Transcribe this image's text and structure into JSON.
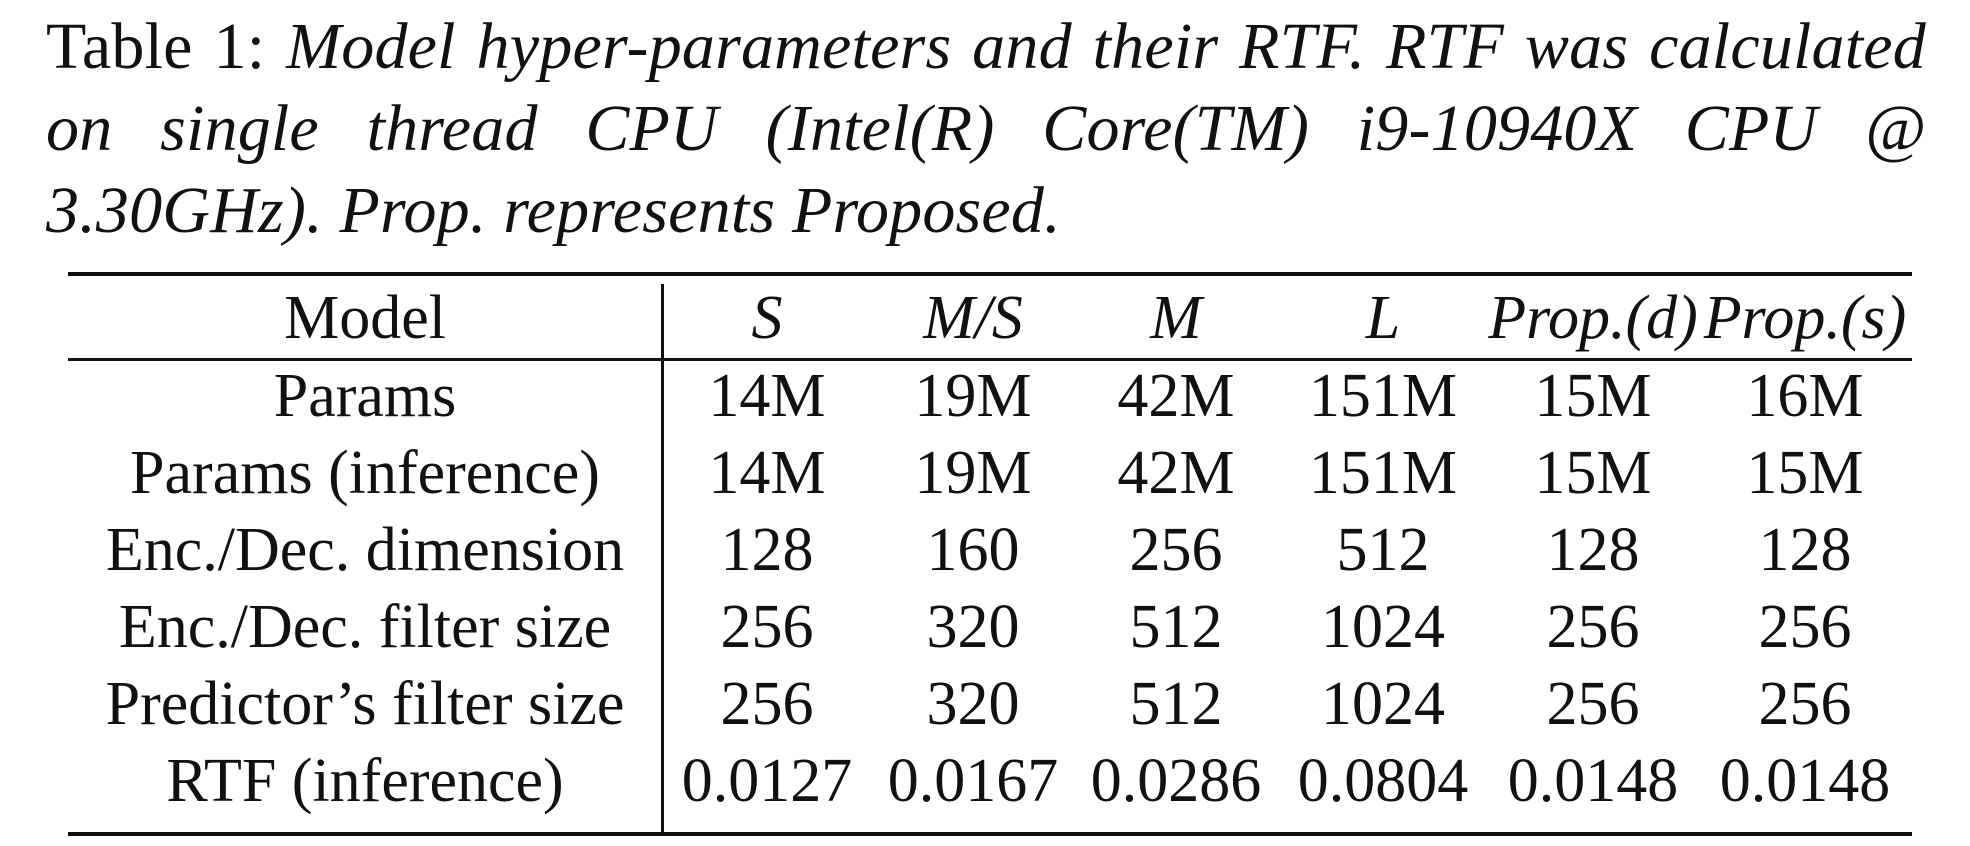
{
  "caption": {
    "label": "Table 1:",
    "text": "Model hyper-parameters and their RTF. RTF was calculated on single thread CPU (Intel(R) Core(TM) i9-10940X CPU @ 3.30GHz). Prop. represents Proposed."
  },
  "table": {
    "header": [
      "Model",
      "S",
      "M/S",
      "M",
      "L",
      "Prop.(d)",
      "Prop.(s)"
    ],
    "rows": [
      {
        "label": "Params",
        "values": [
          "14M",
          "19M",
          "42M",
          "151M",
          "15M",
          "16M"
        ]
      },
      {
        "label": "Params (inference)",
        "values": [
          "14M",
          "19M",
          "42M",
          "151M",
          "15M",
          "15M"
        ]
      },
      {
        "label": "Enc./Dec. dimension",
        "values": [
          "128",
          "160",
          "256",
          "512",
          "128",
          "128"
        ]
      },
      {
        "label": "Enc./Dec. filter size",
        "values": [
          "256",
          "320",
          "512",
          "1024",
          "256",
          "256"
        ]
      },
      {
        "label": "Predictor’s filter size",
        "values": [
          "256",
          "320",
          "512",
          "1024",
          "256",
          "256"
        ]
      },
      {
        "label": "RTF (inference)",
        "values": [
          "0.0127",
          "0.0167",
          "0.0286",
          "0.0804",
          "0.0148",
          "0.0148"
        ]
      }
    ]
  }
}
